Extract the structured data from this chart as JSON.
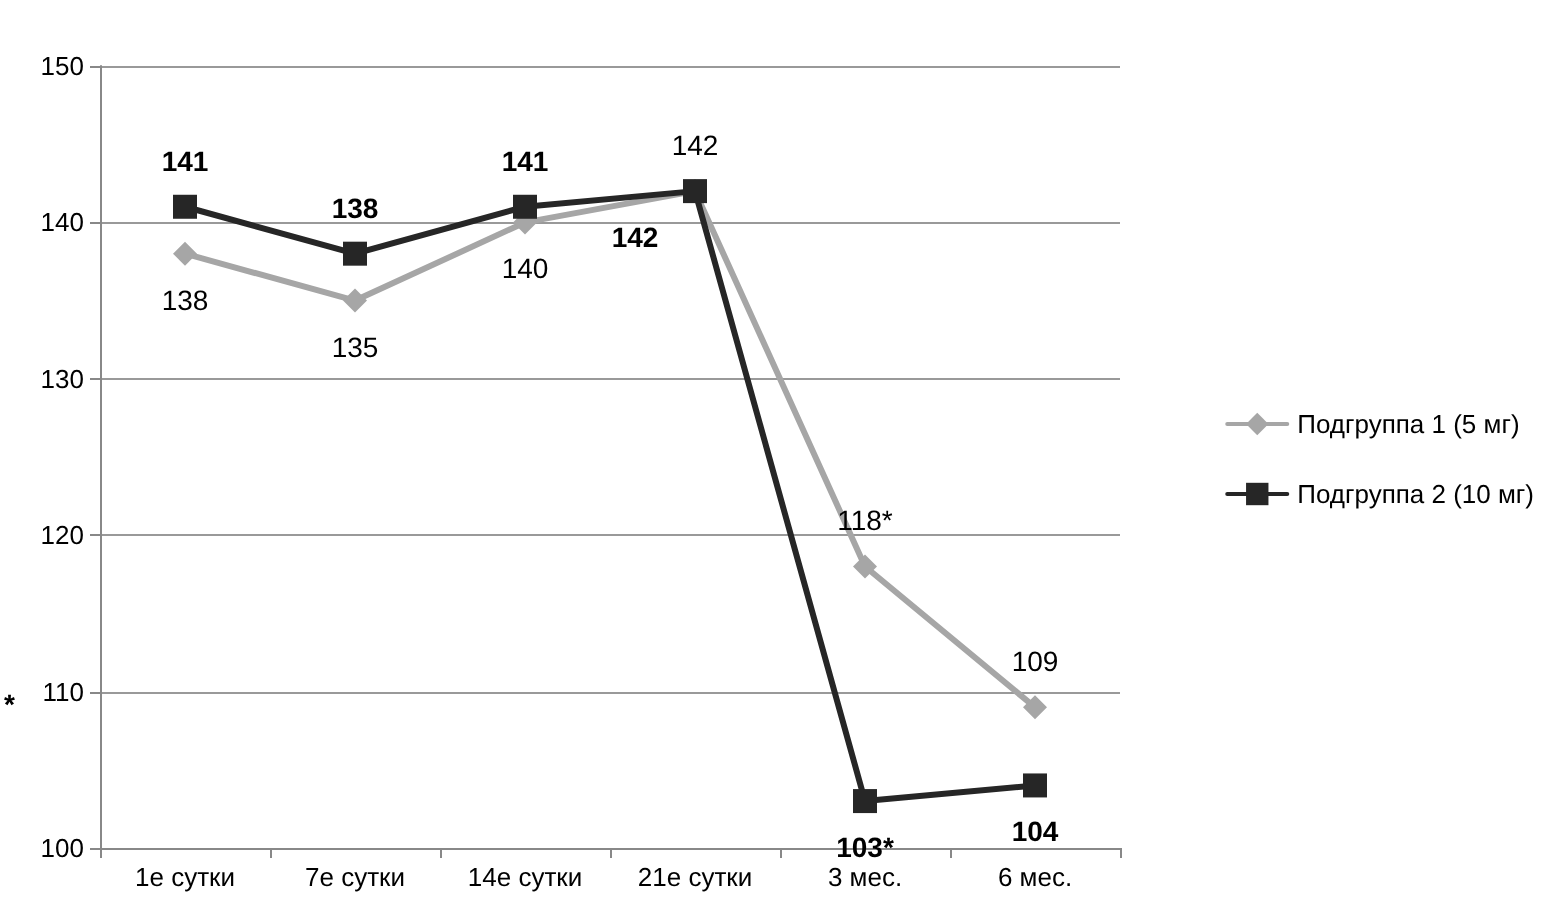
{
  "chart_data": {
    "type": "line",
    "categories": [
      "1е сутки",
      "7е сутки",
      "14е сутки",
      "21е сутки",
      "3 мес.",
      "6 мес."
    ],
    "series": [
      {
        "name": "Подгруппа 1 (5 мг)",
        "color": "#a6a6a6",
        "marker": "diamond",
        "values": [
          138,
          135,
          140,
          142,
          118,
          109
        ],
        "value_labels": [
          "138",
          "135",
          "140",
          "142",
          "118*",
          "109"
        ]
      },
      {
        "name": "Подгруппа 2 (10 мг)",
        "color": "#262626",
        "marker": "square",
        "values": [
          141,
          138,
          141,
          142,
          103,
          104
        ],
        "value_labels": [
          "141",
          "138",
          "141",
          "142",
          "103*",
          "104"
        ]
      }
    ],
    "ylim": [
      100,
      150
    ],
    "yticks": [
      100,
      110,
      120,
      130,
      140,
      150
    ],
    "grid": "y",
    "legend": "right",
    "annotations": [
      "*"
    ]
  }
}
